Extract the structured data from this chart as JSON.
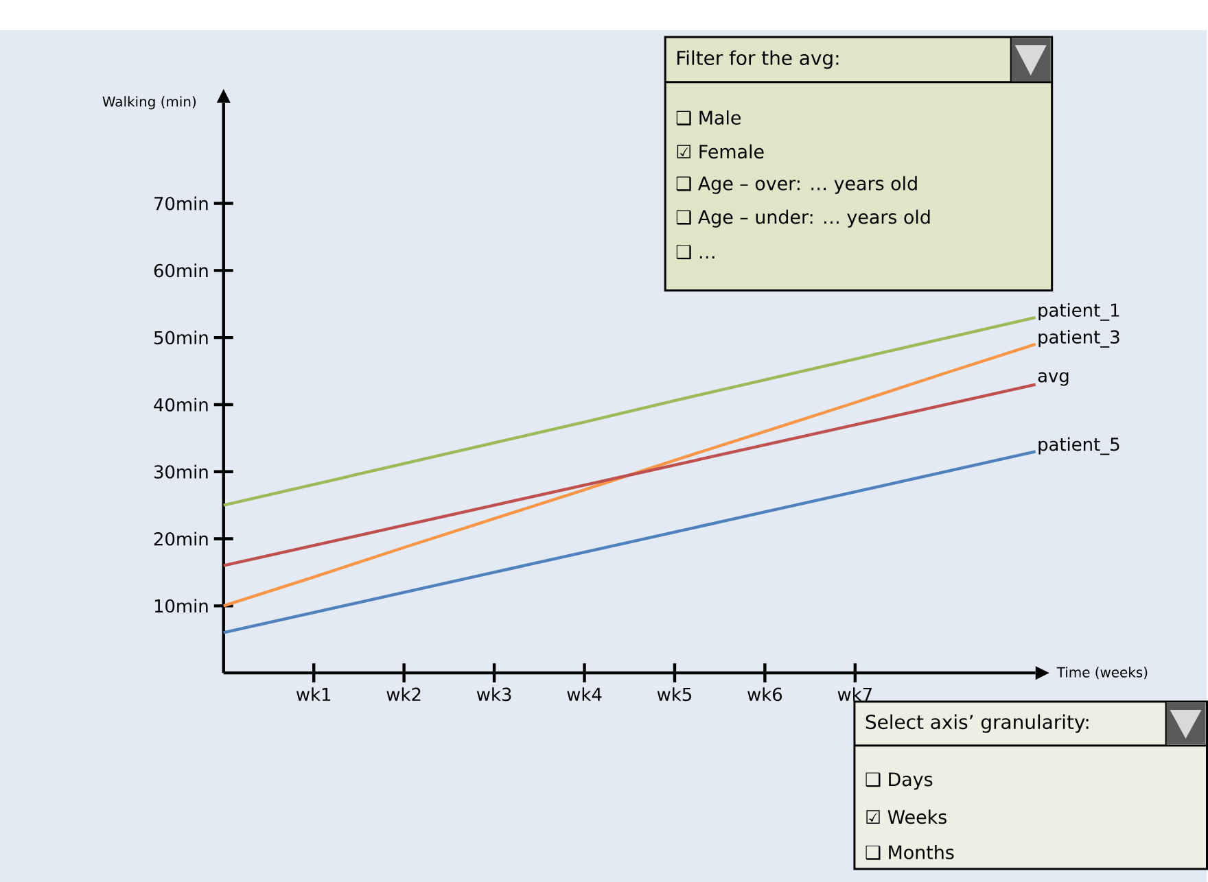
{
  "chart_data": {
    "type": "line",
    "xlabel": "Time (weeks)",
    "ylabel": "Walking (min)",
    "ylim": [
      0,
      85
    ],
    "categories": [
      null,
      "wk1",
      "wk2",
      "wk3",
      "wk4",
      "wk5",
      "wk6",
      "wk7",
      null,
      null
    ],
    "yticks": [
      {
        "value": 10,
        "label": "10min"
      },
      {
        "value": 20,
        "label": "20min"
      },
      {
        "value": 30,
        "label": "30min"
      },
      {
        "value": 40,
        "label": "40min"
      },
      {
        "value": 50,
        "label": "50min"
      },
      {
        "value": 60,
        "label": "60min"
      },
      {
        "value": 70,
        "label": "70min"
      }
    ],
    "series": [
      {
        "name": "patient_1",
        "color": "#9bbb59",
        "values": [
          25,
          28.1,
          31.2,
          34.3,
          37.4,
          40.6,
          43.7,
          46.8,
          49.9,
          53
        ]
      },
      {
        "name": "patient_3",
        "color": "#f79646",
        "values": [
          10,
          14.3,
          18.7,
          23,
          27.3,
          31.7,
          36,
          40.3,
          44.7,
          49
        ]
      },
      {
        "name": "avg",
        "color": "#c0504d",
        "values": [
          16,
          19,
          22,
          25,
          28,
          31,
          34,
          37,
          40,
          43
        ]
      },
      {
        "name": "patient_5",
        "color": "#4f81bd",
        "values": [
          6,
          9,
          12,
          15,
          18,
          21,
          24,
          27,
          30,
          33
        ]
      }
    ],
    "marker": "none",
    "line_style": "solid",
    "annotations": [
      "Filter for the avg:",
      "❑ Male",
      "☑ Female",
      "❑ Age – over: … years old",
      "❑ Age – under: … years old",
      "❑ …",
      "Select axis’ granularity:",
      "❑ Days",
      "☑ Weeks",
      "❑ Months"
    ]
  }
}
